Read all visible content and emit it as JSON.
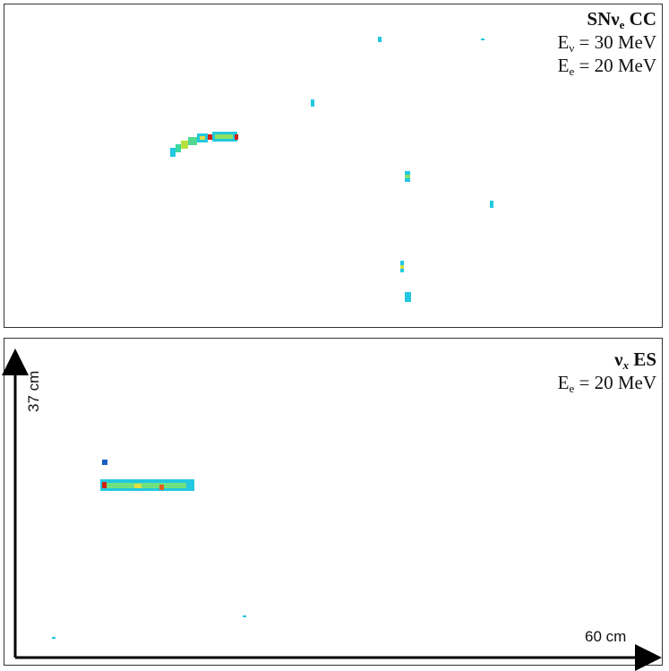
{
  "panels": [
    {
      "title": {
        "main": "SNν",
        "sub": "e",
        "rest": " CC"
      },
      "lines": [
        {
          "main": "E",
          "sub": "ν",
          "rest": " = 30 MeV"
        },
        {
          "main": "E",
          "sub": "e",
          "rest": " = 20 MeV"
        }
      ]
    },
    {
      "title": {
        "main": "ν",
        "sub": "x",
        "rest": " ES"
      },
      "lines": [
        {
          "main": "E",
          "sub": "e",
          "rest": " = 20 MeV"
        }
      ],
      "axes": {
        "y_label": "37 cm",
        "x_label": "60 cm"
      }
    }
  ]
}
